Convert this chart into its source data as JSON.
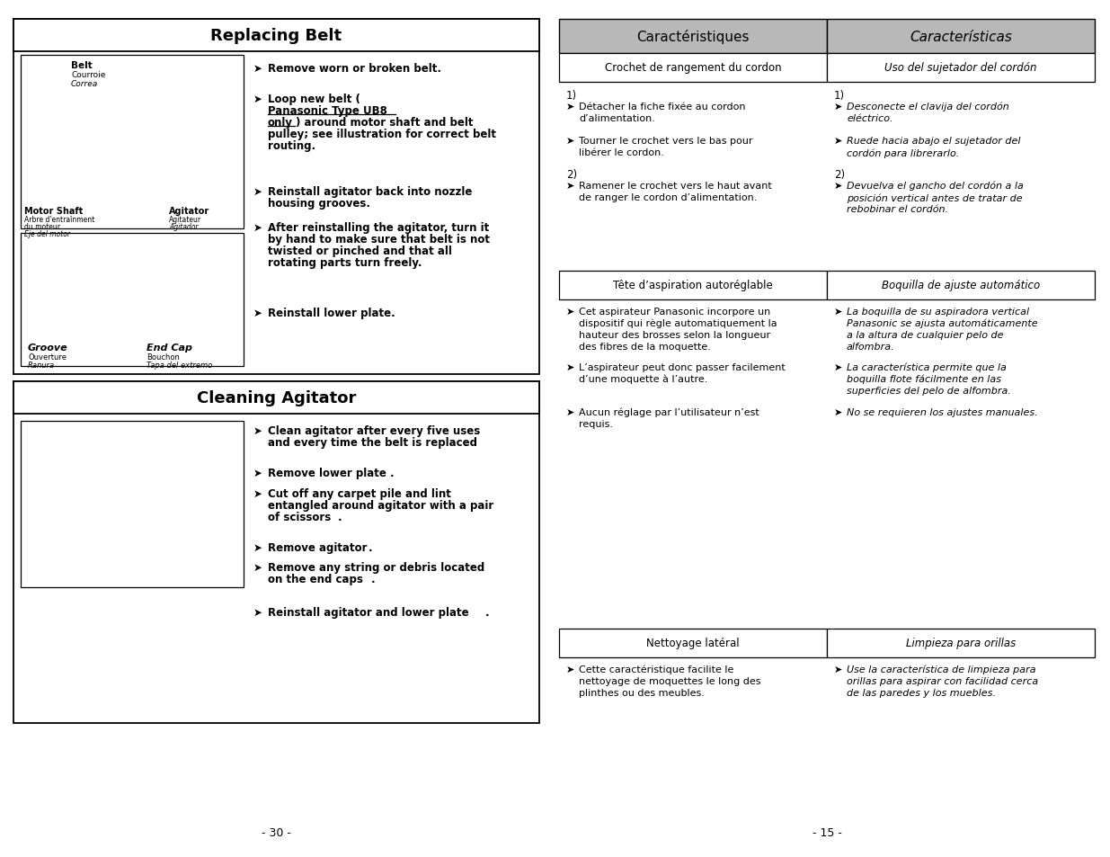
{
  "page_bg": "#ffffff",
  "left_title1": "Replacing Belt",
  "left_title2": "Cleaning Agitator",
  "right_col1_header": "Caractéristiques",
  "right_col2_header": "Características",
  "subheader1_col1": "Crochet de rangement du cordon",
  "subheader1_col2": "Uso del sujetador del cordón",
  "subheader2_col1": "Tête d’aspiration autoréglable",
  "subheader2_col2": "Boquilla de ajuste automático",
  "subheader3_col1": "Nettoyage latéral",
  "subheader3_col2": "Limpieza para orillas",
  "page_num_left": "- 30 -",
  "page_num_right": "- 15 -",
  "header_gray": "#b8b8b8",
  "arrow": "➤"
}
